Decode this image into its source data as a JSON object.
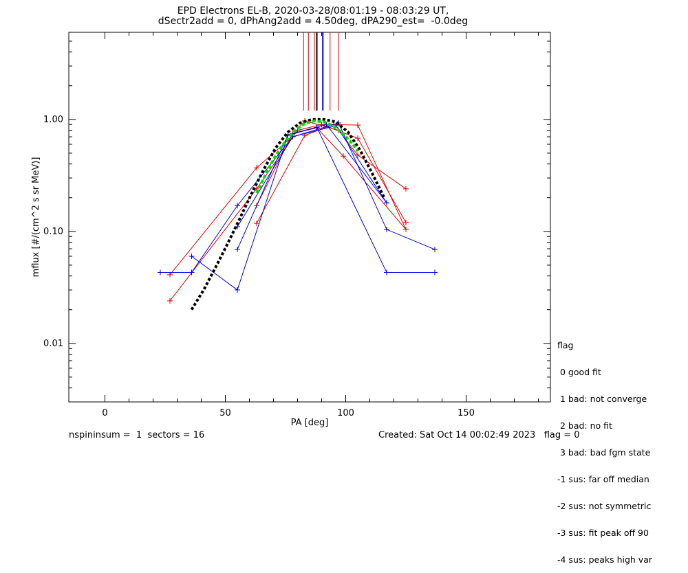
{
  "title": {
    "line1": "EPD Electrons EL-B, 2020-03-28/08:01:19 - 08:03:29 UT,",
    "line2": "dSectr2add = 0, dPhAng2add = 4.50deg, dPA290_est=  -0.0deg"
  },
  "footer": {
    "left": "nspininsum =  1  sectors = 16",
    "right": "Created: Sat Oct 14 00:02:49 2023   flag = 0"
  },
  "flag_legend": {
    "title": "flag",
    "items": [
      " 0 good fit",
      " 1 bad: not converge",
      " 2 bad: no fit",
      " 3 bad: bad fgm state",
      "-1 sus: far off median",
      "-2 sus: not symmetric",
      "-3 sus: fit peak off 90",
      "-4 sus: peaks high var"
    ]
  },
  "colors": {
    "red": "#e00000",
    "blue": "#0000e0",
    "black": "#000000",
    "green": "#00e000"
  },
  "chart_data": {
    "type": "line",
    "xlabel": "PA [deg]",
    "ylabel": "mflux [#/(cm^2 s sr MeV)]",
    "xlim": [
      -15,
      185
    ],
    "ylim": [
      0.003,
      6.0
    ],
    "yscale": "log",
    "xticks": [
      0,
      50,
      100,
      150
    ],
    "xtick_labels": [
      "0",
      "50",
      "100",
      "150"
    ],
    "yticks": [
      0.01,
      0.1,
      1.0
    ],
    "ytick_labels": [
      "0.01",
      "0.10",
      "1.00"
    ],
    "vertical_lines": [
      {
        "x": 82.5,
        "color": "red"
      },
      {
        "x": 84.5,
        "color": "red"
      },
      {
        "x": 87.0,
        "color": "red"
      },
      {
        "x": 88.0,
        "color": "black"
      },
      {
        "x": 90.5,
        "color": "blue"
      },
      {
        "x": 93.5,
        "color": "red"
      },
      {
        "x": 97.0,
        "color": "red"
      }
    ],
    "vertical_line_range": [
      1.2,
      6.0
    ],
    "series": [
      {
        "color": "red",
        "x": [
          27,
          63,
          76,
          83,
          97,
          105,
          125
        ],
        "y": [
          0.041,
          0.37,
          0.65,
          0.97,
          0.8,
          0.48,
          0.24
        ]
      },
      {
        "color": "red",
        "x": [
          27,
          63,
          80,
          90,
          105,
          125
        ],
        "y": [
          0.024,
          0.24,
          0.8,
          0.9,
          0.68,
          0.12
        ]
      },
      {
        "color": "red",
        "x": [
          63,
          78,
          88,
          99,
          125
        ],
        "y": [
          0.17,
          0.75,
          0.84,
          0.47,
          0.104
        ]
      },
      {
        "color": "red",
        "x": [
          63,
          83,
          95,
          105,
          125
        ],
        "y": [
          0.118,
          0.72,
          0.9,
          0.89,
          0.104
        ]
      },
      {
        "color": "blue",
        "x": [
          23,
          36,
          55,
          78,
          97,
          117,
          137
        ],
        "y": [
          0.043,
          0.043,
          0.17,
          0.7,
          0.93,
          0.104,
          0.069
        ]
      },
      {
        "color": "blue",
        "x": [
          36,
          55,
          76,
          88,
          117,
          137
        ],
        "y": [
          0.06,
          0.03,
          0.72,
          0.85,
          0.043,
          0.043
        ]
      },
      {
        "color": "blue",
        "x": [
          55,
          76,
          92,
          117
        ],
        "y": [
          0.069,
          0.73,
          0.9,
          0.18
        ]
      },
      {
        "color": "blue",
        "x": [
          55,
          78,
          96,
          117
        ],
        "y": [
          0.11,
          0.7,
          0.88,
          0.18
        ]
      }
    ],
    "fit_black": {
      "x": [
        36,
        41,
        46,
        51,
        56,
        61,
        66,
        71,
        76,
        81,
        86,
        91,
        96,
        101,
        106,
        111,
        116
      ],
      "y": [
        0.02,
        0.03,
        0.048,
        0.078,
        0.13,
        0.22,
        0.36,
        0.56,
        0.77,
        0.93,
        1.0,
        1.0,
        0.95,
        0.77,
        0.53,
        0.33,
        0.2
      ]
    },
    "fit_green": {
      "x": [
        63,
        67,
        71,
        75,
        79,
        83,
        87,
        91,
        95,
        99,
        103,
        105
      ],
      "y": [
        0.22,
        0.33,
        0.48,
        0.64,
        0.8,
        0.92,
        0.97,
        0.95,
        0.87,
        0.74,
        0.6,
        0.52
      ]
    }
  }
}
